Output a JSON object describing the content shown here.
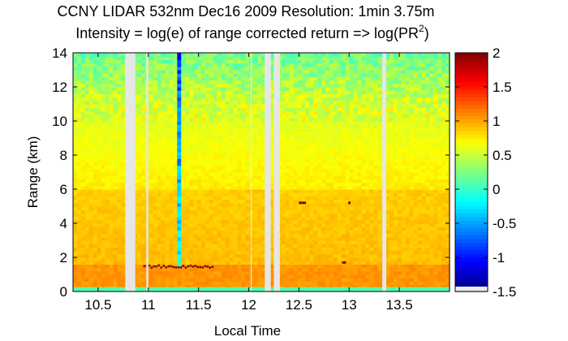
{
  "chart_data": {
    "type": "heatmap",
    "title": "CCNY LIDAR 532nm Dec16 2009 Resolution: 1min 3.75m",
    "subtitle_main": "Intensity = log(e) of range corrected return => log(PR",
    "subtitle_sup": "2",
    "subtitle_end": ")",
    "xlabel": "Local Time",
    "ylabel": "Range (km)",
    "xlim": [
      10.25,
      14.0
    ],
    "ylim": [
      0,
      14
    ],
    "xticks": [
      10.5,
      11,
      11.5,
      12,
      12.5,
      13,
      13.5
    ],
    "xtick_labels": [
      "10.5",
      "11",
      "11.5",
      "12",
      "12.5",
      "13",
      "13.5"
    ],
    "yticks": [
      0,
      2,
      4,
      6,
      8,
      10,
      12,
      14
    ],
    "ytick_labels": [
      "0",
      "2",
      "4",
      "6",
      "8",
      "10",
      "12",
      "14"
    ],
    "colorbar": {
      "colormap": "jet",
      "range": [
        -1.5,
        2
      ],
      "ticks": [
        2,
        1.5,
        1,
        0.5,
        0,
        -0.5,
        -1,
        -1.5
      ],
      "tick_labels": [
        "2",
        "1.5",
        "1",
        "0.5",
        "0",
        "-0.5",
        "-1",
        "-1.5"
      ]
    },
    "data_gaps": [
      [
        10.77,
        10.87
      ],
      [
        10.98,
        11.0
      ],
      [
        12.02,
        12.03
      ],
      [
        12.16,
        12.22
      ],
      [
        12.25,
        12.31
      ],
      [
        13.33,
        13.37
      ]
    ],
    "features": [
      {
        "kind": "low-signal column",
        "x_start": 11.27,
        "x_end": 11.33,
        "y_start": 1.4,
        "y_end": 14
      },
      {
        "kind": "boundary layer cloud",
        "x_start": 10.95,
        "x_end": 11.65,
        "y": 1.4
      },
      {
        "kind": "cloud",
        "x_start": 12.5,
        "x_end": 12.57,
        "y": 5.2
      },
      {
        "kind": "cloud",
        "x_start": 12.93,
        "x_end": 12.97,
        "y": 1.7
      },
      {
        "kind": "cloud",
        "x_start": 12.99,
        "x_end": 13.0,
        "y": 5.2
      }
    ]
  }
}
